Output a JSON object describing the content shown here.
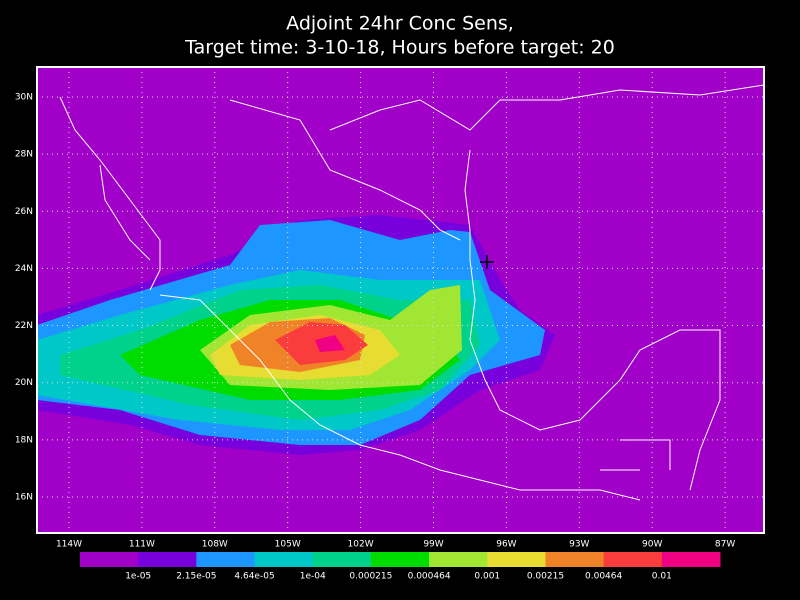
{
  "title": [
    "Adjoint 24hr Conc Sens,",
    "Target time: 3-10-18, Hours before target: 20"
  ],
  "map": {
    "lat_labels": [
      "30N",
      "28N",
      "26N",
      "24N",
      "22N",
      "20N",
      "18N",
      "16N"
    ],
    "lon_labels": [
      "114W",
      "111W",
      "108W",
      "105W",
      "102W",
      "99W",
      "96W",
      "93W",
      "90W",
      "87W"
    ]
  },
  "colorbar": {
    "colors": [
      "#a000c8",
      "#7800dc",
      "#1e96ff",
      "#00c8c8",
      "#00d28c",
      "#00dc00",
      "#a0e632",
      "#e6dc32",
      "#f08228",
      "#fa3c3c",
      "#f00082"
    ],
    "labels": [
      "1e-05",
      "2.15e-05",
      "4.64e-05",
      "1e-04",
      "0.000215",
      "0.000464",
      "0.001",
      "0.00215",
      "0.00464",
      "0.01"
    ]
  }
}
